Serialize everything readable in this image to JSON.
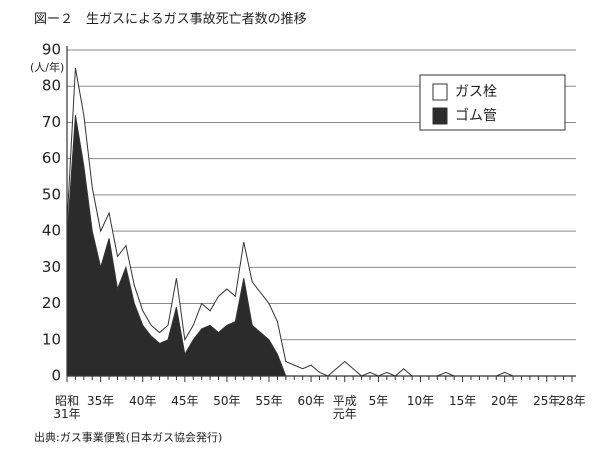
{
  "title": "図ー２　生ガスによるガス事故死亡者数の推移",
  "source": "出典:ガス事業便覧(日本ガス協会発行)",
  "chart_data": {
    "type": "area",
    "y_unit": "(人/年)",
    "categories": [
      "昭和31年",
      null,
      null,
      null,
      "35年",
      null,
      null,
      null,
      null,
      "40年",
      null,
      null,
      null,
      null,
      "45年",
      null,
      null,
      null,
      null,
      "50年",
      null,
      null,
      null,
      null,
      "55年",
      null,
      null,
      null,
      null,
      "60年",
      null,
      null,
      null,
      "平成元年",
      null,
      null,
      null,
      "5年",
      null,
      null,
      null,
      null,
      "10年",
      null,
      null,
      null,
      null,
      "15年",
      null,
      null,
      null,
      null,
      "20年",
      null,
      null,
      null,
      null,
      "25年",
      null,
      null,
      "28年"
    ],
    "series": [
      {
        "name": "ゴム管",
        "color": "#2b2b2b",
        "values": [
          38,
          72,
          58,
          40,
          30,
          38,
          24,
          30,
          20,
          14,
          11,
          9,
          10,
          19,
          6,
          10,
          13,
          14,
          12,
          14,
          15,
          27,
          14,
          12,
          10,
          6,
          0,
          0,
          0,
          0,
          0,
          0,
          0,
          0,
          0,
          0,
          0,
          0,
          0,
          0,
          0,
          0,
          0,
          0,
          0,
          0,
          0,
          0,
          0,
          0,
          0,
          0,
          0,
          0,
          0,
          0,
          0,
          0,
          0,
          0,
          0
        ]
      },
      {
        "name": "ガス栓",
        "color": "#ffffff",
        "values": [
          4,
          13,
          14,
          12,
          10,
          7,
          9,
          6,
          5,
          4,
          3,
          3,
          4,
          8,
          4,
          4,
          7,
          4,
          10,
          10,
          7,
          10,
          12,
          11,
          10,
          9,
          4,
          3,
          2,
          3,
          1,
          0,
          2,
          4,
          2,
          0,
          1,
          0,
          1,
          0,
          2,
          0,
          0,
          0,
          0,
          1,
          0,
          0,
          0,
          0,
          0,
          0,
          1,
          0,
          0,
          0,
          0,
          0,
          0,
          0,
          0
        ]
      }
    ],
    "ylim": [
      0,
      90
    ],
    "yticks": [
      0,
      10,
      20,
      30,
      40,
      50,
      60,
      70,
      80,
      90
    ],
    "grid": true,
    "stacked": true,
    "legend": "upper right"
  }
}
